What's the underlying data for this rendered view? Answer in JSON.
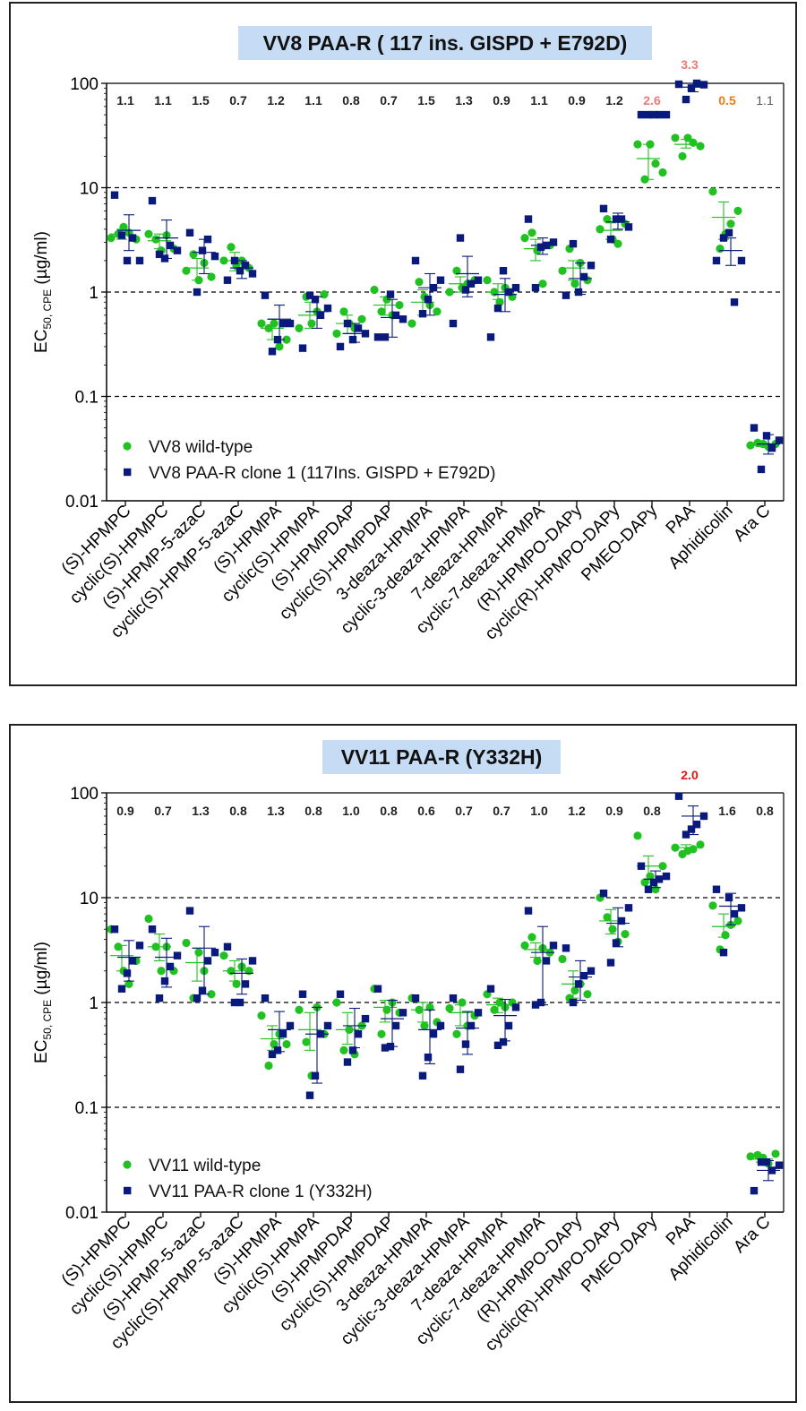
{
  "colors": {
    "wt": "#22c122",
    "mut": "#0a1a7a",
    "title_bg": "#c6dcf5",
    "fold_red": "#ee1111",
    "fold_pink": "#f07878",
    "fold_orange": "#f07c10",
    "fold_default": "#222222"
  },
  "chart_data": [
    {
      "type": "scatter",
      "title": "VV8 PAA-R ( 117 ins. GISPD + E792D)",
      "ylabel_main": "EC",
      "ylabel_sub": "50, CPE",
      "ylabel_unit": " (µg/ml)",
      "yscale": "log",
      "ylim": [
        0.01,
        100
      ],
      "yticks": [
        "0.01",
        "0.1",
        "1",
        "10",
        "100"
      ],
      "gridlines": [
        0.1,
        1,
        10
      ],
      "legend_position": "bottom-left",
      "categories": [
        "(S)-HPMPC",
        "cyclic(S)-HPMPC",
        "(S)-HPMP-5-azaC",
        "cyclic(S)-HPMP-5-azaC",
        "(S)-HPMPA",
        "cyclic(S)-HPMPA",
        "(S)-HPMPDAP",
        "cyclic(S)-HPMPDAP",
        "3-deaza-HPMPA",
        "cyclic-3-deaza-HPMPA",
        "7-deaza-HPMPA",
        "cyclic-7-deaza-HPMPA",
        "(R)-HPMPO-DAPy",
        "cyclic(R)-HPMPO-DAPy",
        "PMEO-DAPy",
        "PAA",
        "Aphidicolin",
        "Ara C"
      ],
      "fold_change": [
        "1.1",
        "1.1",
        "1.5",
        "0.7",
        "1.2",
        "1.1",
        "0.8",
        "0.7",
        "1.5",
        "1.3",
        "0.9",
        "1.1",
        "0.9",
        "1.2",
        "2.6",
        "3.3",
        "0.5",
        "1.1"
      ],
      "fold_style": [
        "b",
        "b",
        "b",
        "b",
        "b",
        "b",
        "b",
        "b",
        "b",
        "b",
        "b",
        "b",
        "b",
        "b",
        "pink",
        "pink",
        "orange",
        "n"
      ],
      "series": [
        {
          "name": "VV8 wild-type",
          "marker": "circle",
          "values": [
            [
              3.3,
              3.6,
              4.2,
              3.7,
              3.2
            ],
            [
              3.6,
              3.2,
              2.5,
              3.5,
              2.6
            ],
            [
              1.6,
              2.3,
              1.3,
              1.9,
              1.4
            ],
            [
              2.0,
              2.7,
              1.8,
              2.0,
              1.7
            ],
            [
              0.5,
              0.45,
              0.5,
              0.3,
              0.35
            ],
            [
              0.45,
              0.9,
              0.5,
              0.65,
              0.95
            ],
            [
              0.4,
              0.65,
              0.5,
              0.45,
              0.55
            ],
            [
              1.05,
              0.65,
              0.85,
              0.6,
              0.75
            ],
            [
              0.5,
              1.25,
              0.9,
              0.75,
              0.65
            ],
            [
              1.0,
              1.6,
              1.1,
              1.2,
              1.3
            ],
            [
              1.3,
              1.0,
              0.8,
              1.1,
              0.9
            ],
            [
              3.3,
              3.7,
              2.5,
              1.2,
              2.8
            ],
            [
              1.6,
              2.6,
              1.2,
              1.9,
              1.3
            ],
            [
              4.0,
              5.0,
              3.2,
              2.9,
              4.5
            ],
            [
              26,
              12,
              26,
              17,
              14
            ],
            [
              30,
              20,
              30,
              27,
              25
            ],
            [
              9.2,
              2.6,
              3.6,
              4.5,
              6.0
            ],
            [
              0.034,
              0.036,
              0.035,
              0.033,
              0.035
            ]
          ],
          "mean": [
            3.6,
            3.1,
            1.7,
            2.0,
            0.45,
            0.6,
            0.5,
            0.75,
            0.8,
            1.2,
            1.0,
            2.6,
            1.7,
            3.9,
            19,
            26,
            5.2,
            0.035
          ],
          "err": [
            [
              3.2,
              4.0
            ],
            [
              2.6,
              3.6
            ],
            [
              1.3,
              2.1
            ],
            [
              1.6,
              2.4
            ],
            [
              0.35,
              0.55
            ],
            [
              0.45,
              0.8
            ],
            [
              0.4,
              0.6
            ],
            [
              0.6,
              0.9
            ],
            [
              0.6,
              1.05
            ],
            [
              1.0,
              1.4
            ],
            [
              0.85,
              1.2
            ],
            [
              2.0,
              3.2
            ],
            [
              1.3,
              2.0
            ],
            [
              3.2,
              4.6
            ],
            [
              12,
              26
            ],
            [
              24,
              29
            ],
            [
              3.2,
              7.3
            ],
            [
              0.033,
              0.037
            ]
          ]
        },
        {
          "name": "VV8 PAA-R clone 1 (117Ins. GISPD + E792D)",
          "marker": "square",
          "values": [
            [
              8.5,
              3.5,
              2.0,
              3.3,
              2.0
            ],
            [
              7.5,
              2.3,
              2.1,
              2.8,
              2.5
            ],
            [
              3.7,
              1.0,
              2.5,
              3.2,
              2.2
            ],
            [
              1.3,
              2.0,
              1.6,
              1.8,
              1.5
            ],
            [
              0.93,
              0.27,
              0.35,
              0.5,
              0.5
            ],
            [
              0.29,
              0.93,
              0.85,
              0.6,
              0.7
            ],
            [
              0.3,
              0.5,
              0.35,
              0.45,
              0.4
            ],
            [
              0.37,
              0.37,
              0.95,
              0.6,
              0.55
            ],
            [
              2.0,
              0.62,
              0.85,
              1.1,
              1.3
            ],
            [
              0.5,
              3.3,
              1.05,
              1.2,
              1.3
            ],
            [
              0.37,
              0.7,
              1.6,
              1.0,
              1.1
            ],
            [
              5.0,
              1.1,
              2.7,
              2.8,
              3.0
            ],
            [
              0.93,
              2.9,
              1.0,
              1.4,
              1.8
            ],
            [
              6.3,
              3.2,
              5.0,
              5.0,
              4.2
            ],
            [
              50,
              50,
              50,
              50,
              50
            ],
            [
              98,
              70,
              90,
              100,
              97
            ],
            [
              2.0,
              3.3,
              3.7,
              0.8,
              2.0
            ],
            [
              0.05,
              0.02,
              0.042,
              0.032,
              0.038
            ]
          ],
          "mean": [
            3.9,
            3.3,
            2.4,
            1.7,
            0.55,
            0.65,
            0.4,
            0.57,
            1.1,
            1.5,
            0.95,
            2.8,
            1.35,
            4.7,
            50,
            92,
            2.5,
            0.035
          ],
          "err": [
            [
              2.5,
              5.5
            ],
            [
              2.1,
              4.9
            ],
            [
              1.5,
              3.2
            ],
            [
              1.35,
              2.0
            ],
            [
              0.35,
              0.75
            ],
            [
              0.45,
              0.9
            ],
            [
              0.33,
              0.5
            ],
            [
              0.37,
              0.85
            ],
            [
              0.6,
              1.5
            ],
            [
              0.9,
              2.2
            ],
            [
              0.65,
              1.35
            ],
            [
              2.3,
              3.3
            ],
            [
              0.95,
              1.9
            ],
            [
              4.0,
              5.7
            ],
            [
              49,
              51
            ],
            [
              83,
              100
            ],
            [
              1.8,
              3.3
            ],
            [
              0.028,
              0.043
            ]
          ]
        }
      ]
    },
    {
      "type": "scatter",
      "title": "VV11 PAA-R (Y332H)",
      "ylabel_main": "EC",
      "ylabel_sub": "50, CPE",
      "ylabel_unit": " (µg/ml)",
      "yscale": "log",
      "ylim": [
        0.01,
        100
      ],
      "yticks": [
        "0.01",
        "0.1",
        "1",
        "10",
        "100"
      ],
      "gridlines": [
        0.1,
        1,
        10
      ],
      "legend_position": "bottom-left",
      "categories": [
        "(S)-HPMPC",
        "cyclic(S)-HPMPC",
        "(S)-HPMP-5-azaC",
        "cyclic(S)-HPMP-5-azaC",
        "(S)-HPMPA",
        "cyclic(S)-HPMPA",
        "(S)-HPMPDAP",
        "cyclic(S)-HPMPDAP",
        "3-deaza-HPMPA",
        "cyclic-3-deaza-HPMPA",
        "7-deaza-HPMPA",
        "cyclic-7-deaza-HPMPA",
        "(R)-HPMPO-DAPy",
        "cyclic(R)-HPMPO-DAPy",
        "PMEO-DAPy",
        "PAA",
        "Aphidicolin",
        "Ara C"
      ],
      "fold_change": [
        "0.9",
        "0.7",
        "1.3",
        "0.8",
        "1.3",
        "0.8",
        "1.0",
        "0.8",
        "0.6",
        "0.7",
        "0.7",
        "1.0",
        "1.2",
        "0.9",
        "0.8",
        "2.0",
        "1.6",
        "0.8"
      ],
      "fold_style": [
        "b",
        "b",
        "b",
        "b",
        "b",
        "b",
        "b",
        "b",
        "b",
        "b",
        "b",
        "b",
        "b",
        "b",
        "b",
        "red",
        "b",
        "b"
      ],
      "series": [
        {
          "name": "VV11 wild-type",
          "marker": "circle",
          "values": [
            [
              5.0,
              3.4,
              2.0,
              1.5,
              2.5
            ],
            [
              6.3,
              3.4,
              2.0,
              3.4,
              2.0
            ],
            [
              3.7,
              1.1,
              3.0,
              2.0,
              1.2
            ],
            [
              2.8,
              2.0,
              1.5,
              2.2,
              2.0
            ],
            [
              0.75,
              0.25,
              0.4,
              0.5,
              0.4
            ],
            [
              0.85,
              0.42,
              0.2,
              0.9,
              0.5
            ],
            [
              1.0,
              0.35,
              0.55,
              0.32,
              0.6
            ],
            [
              1.35,
              0.5,
              0.85,
              1.0,
              0.8
            ],
            [
              1.1,
              0.85,
              0.6,
              0.9,
              0.65
            ],
            [
              0.88,
              0.5,
              1.0,
              0.6,
              0.75
            ],
            [
              1.2,
              0.85,
              1.0,
              0.9,
              1.0
            ],
            [
              3.5,
              4.2,
              2.5,
              3.3,
              3.0
            ],
            [
              2.6,
              1.1,
              1.3,
              1.5,
              1.2
            ],
            [
              10.0,
              6.5,
              5.0,
              3.8,
              4.5
            ],
            [
              39,
              14,
              16,
              12,
              20
            ],
            [
              30,
              26,
              28,
              29,
              32
            ],
            [
              8.4,
              3.2,
              4.4,
              5.5,
              6.0
            ],
            [
              0.034,
              0.035,
              0.033,
              0.029,
              0.036
            ]
          ],
          "mean": [
            2.8,
            3.4,
            2.4,
            2.0,
            0.45,
            0.55,
            0.55,
            0.9,
            0.85,
            0.8,
            0.95,
            3.2,
            1.5,
            6.0,
            20,
            30,
            5.3,
            0.032
          ],
          "err": [
            [
              2.0,
              3.5
            ],
            [
              2.5,
              4.5
            ],
            [
              1.6,
              3.3
            ],
            [
              1.6,
              2.5
            ],
            [
              0.35,
              0.6
            ],
            [
              0.35,
              0.8
            ],
            [
              0.4,
              0.8
            ],
            [
              0.65,
              1.05
            ],
            [
              0.65,
              1.0
            ],
            [
              0.6,
              0.95
            ],
            [
              0.8,
              1.1
            ],
            [
              2.7,
              3.7
            ],
            [
              1.1,
              2.0
            ],
            [
              4.5,
              7.7
            ],
            [
              14,
              25
            ],
            [
              28,
              32
            ],
            [
              4.2,
              7.0
            ],
            [
              0.03,
              0.034
            ]
          ]
        },
        {
          "name": "VV11 PAA-R clone 1 (Y332H)",
          "marker": "square",
          "values": [
            [
              5.0,
              1.35,
              1.9,
              2.5,
              3.5
            ],
            [
              5.0,
              1.1,
              1.6,
              2.2,
              2.8
            ],
            [
              7.5,
              1.1,
              1.3,
              2.5,
              3.0
            ],
            [
              3.4,
              1.0,
              1.0,
              1.5,
              2.5
            ],
            [
              1.1,
              0.32,
              0.35,
              0.5,
              0.6
            ],
            [
              1.2,
              0.13,
              0.2,
              0.5,
              0.6
            ],
            [
              1.2,
              0.27,
              0.35,
              0.5,
              0.7
            ],
            [
              1.35,
              0.37,
              0.38,
              0.6,
              0.8
            ],
            [
              1.1,
              0.2,
              0.3,
              0.5,
              0.6
            ],
            [
              1.1,
              0.23,
              0.4,
              0.6,
              0.8
            ],
            [
              1.35,
              0.39,
              0.42,
              0.6,
              0.9
            ],
            [
              7.5,
              0.95,
              1.0,
              2.5,
              3.5
            ],
            [
              3.3,
              1.0,
              1.5,
              1.8,
              2.0
            ],
            [
              11.0,
              2.4,
              3.7,
              6.0,
              8.0
            ],
            [
              20,
              12,
              14,
              15,
              16
            ],
            [
              93,
              40,
              45,
              50,
              60
            ],
            [
              12,
              3.0,
              10,
              7.0,
              8.0
            ],
            [
              0.016,
              0.03,
              0.03,
              0.025,
              0.028
            ]
          ],
          "mean": [
            2.7,
            2.7,
            3.3,
            1.9,
            0.55,
            0.5,
            0.6,
            0.7,
            0.55,
            0.57,
            0.75,
            3.0,
            1.75,
            5.7,
            15,
            60,
            8.3,
            0.025
          ],
          "err": [
            [
              1.6,
              3.9
            ],
            [
              1.4,
              4.1
            ],
            [
              1.2,
              5.3
            ],
            [
              1.2,
              2.6
            ],
            [
              0.34,
              0.82
            ],
            [
              0.17,
              0.9
            ],
            [
              0.37,
              0.88
            ],
            [
              0.38,
              1.05
            ],
            [
              0.26,
              0.85
            ],
            [
              0.32,
              0.82
            ],
            [
              0.43,
              1.07
            ],
            [
              0.95,
              5.3
            ],
            [
              1.05,
              2.5
            ],
            [
              3.4,
              8.0
            ],
            [
              12.5,
              18
            ],
            [
              40,
              75
            ],
            [
              5.5,
              11
            ],
            [
              0.02,
              0.031
            ]
          ]
        }
      ]
    }
  ]
}
